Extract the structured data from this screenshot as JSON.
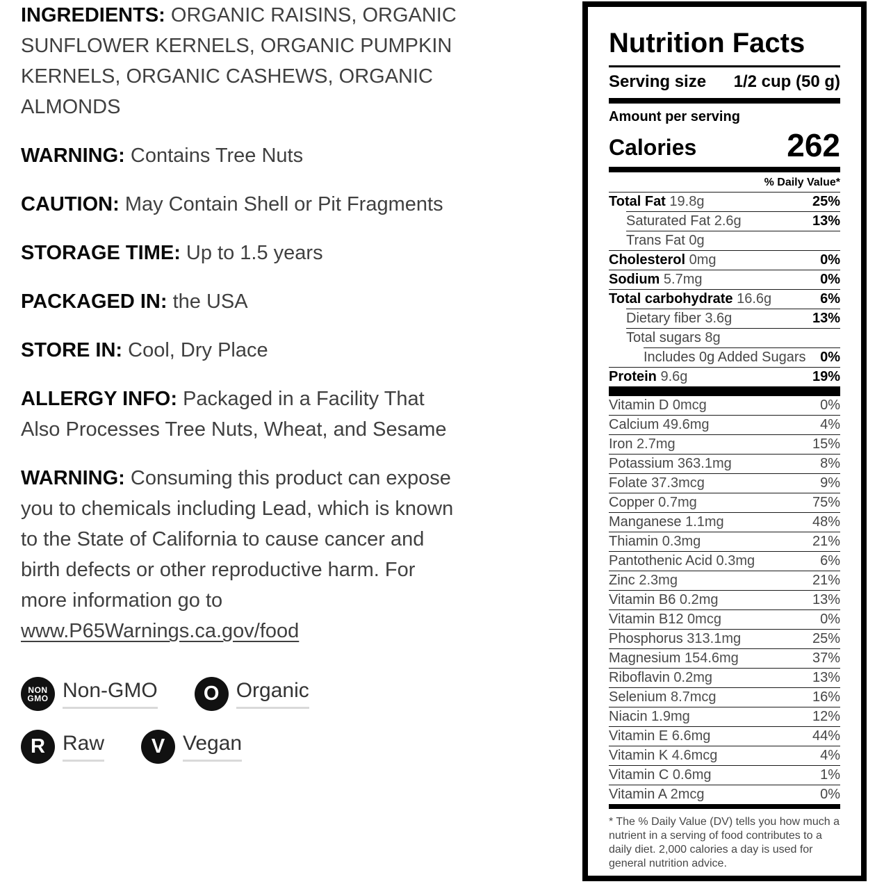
{
  "colors": {
    "background": "#ffffff",
    "text_primary": "#000000",
    "text_secondary": "#404040",
    "panel_border": "#000000",
    "badge_fill": "#111111",
    "label_underline": "#d9d9d9"
  },
  "left_panel": {
    "paragraphs": [
      {
        "name": "ingredients",
        "label": "INGREDIENTS:",
        "text": "ORGANIC RAISINS, ORGANIC SUNFLOWER KERNELS, ORGANIC PUMPKIN KERNELS, ORGANIC CASHEWS, ORGANIC ALMONDS"
      },
      {
        "name": "warning-tree-nuts",
        "label": "WARNING:",
        "text": "Contains Tree Nuts"
      },
      {
        "name": "caution",
        "label": "CAUTION:",
        "text": "May Contain Shell or Pit Fragments"
      },
      {
        "name": "storage-time",
        "label": "STORAGE TIME:",
        "text": "Up to 1.5 years"
      },
      {
        "name": "packaged-in",
        "label": "PACKAGED IN:",
        "text": "the USA"
      },
      {
        "name": "store-in",
        "label": "STORE IN:",
        "text": "Cool, Dry Place"
      },
      {
        "name": "allergy-info",
        "label": "ALLERGY INFO:",
        "text": "Packaged in a Facility That Also Processes Tree Nuts, Wheat, and Sesame"
      },
      {
        "name": "prop65-warning",
        "label": "WARNING:",
        "text": "Consuming this product can expose you to chemicals including Lead, which is known to the State of California to cause cancer and birth defects or other reproductive harm. For more information go to ",
        "link": "www.P65Warnings.ca.gov/food"
      }
    ],
    "badges": [
      {
        "icon_lines": [
          "NON",
          "GMO"
        ],
        "label": "Non-GMO"
      },
      {
        "icon_lines": [
          "O"
        ],
        "label": "Organic"
      },
      {
        "icon_lines": [
          "R"
        ],
        "label": "Raw"
      },
      {
        "icon_lines": [
          "V"
        ],
        "label": "Vegan"
      }
    ]
  },
  "nutrition_facts": {
    "title": "Nutrition Facts",
    "serving_size_label": "Serving size",
    "serving_size_value": "1/2 cup (50 g)",
    "amount_per_serving": "Amount per serving",
    "calories_label": "Calories",
    "calories_value": "262",
    "daily_value_header": "% Daily Value*",
    "nutrients": [
      {
        "name": "Total Fat",
        "amount": "19.8g",
        "dv": "25%",
        "bold": true,
        "indent": 0
      },
      {
        "name": "Saturated Fat",
        "amount": "2.6g",
        "dv": "13%",
        "bold": false,
        "indent": 1
      },
      {
        "name": "Trans Fat",
        "amount": "0g",
        "dv": "",
        "bold": false,
        "indent": 1
      },
      {
        "name": "Cholesterol",
        "amount": "0mg",
        "dv": "0%",
        "bold": true,
        "indent": 0
      },
      {
        "name": "Sodium",
        "amount": "5.7mg",
        "dv": "0%",
        "bold": true,
        "indent": 0
      },
      {
        "name": "Total carbohydrate",
        "amount": "16.6g",
        "dv": "6%",
        "bold": true,
        "indent": 0
      },
      {
        "name": "Dietary fiber",
        "amount": "3.6g",
        "dv": "13%",
        "bold": false,
        "indent": 1
      },
      {
        "name": "Total sugars",
        "amount": "8g",
        "dv": "",
        "bold": false,
        "indent": 1
      },
      {
        "name": "Includes 0g Added Sugars",
        "amount": "",
        "dv": "0%",
        "bold": false,
        "indent": 2
      },
      {
        "name": "Protein",
        "amount": "9.6g",
        "dv": "19%",
        "bold": true,
        "indent": 0
      }
    ],
    "vitamins": [
      {
        "name": "Vitamin D",
        "amount": "0mcg",
        "dv": "0%"
      },
      {
        "name": "Calcium",
        "amount": "49.6mg",
        "dv": "4%"
      },
      {
        "name": "Iron",
        "amount": "2.7mg",
        "dv": "15%"
      },
      {
        "name": "Potassium",
        "amount": "363.1mg",
        "dv": "8%"
      },
      {
        "name": "Folate",
        "amount": "37.3mcg",
        "dv": "9%"
      },
      {
        "name": "Copper",
        "amount": "0.7mg",
        "dv": "75%"
      },
      {
        "name": "Manganese",
        "amount": "1.1mg",
        "dv": "48%"
      },
      {
        "name": "Thiamin",
        "amount": "0.3mg",
        "dv": "21%"
      },
      {
        "name": "Pantothenic Acid",
        "amount": "0.3mg",
        "dv": "6%"
      },
      {
        "name": "Zinc",
        "amount": "2.3mg",
        "dv": "21%"
      },
      {
        "name": "Vitamin B6",
        "amount": "0.2mg",
        "dv": "13%"
      },
      {
        "name": "Vitamin B12",
        "amount": "0mcg",
        "dv": "0%"
      },
      {
        "name": "Phosphorus",
        "amount": "313.1mg",
        "dv": "25%"
      },
      {
        "name": "Magnesium",
        "amount": "154.6mg",
        "dv": "37%"
      },
      {
        "name": "Riboflavin",
        "amount": "0.2mg",
        "dv": "13%"
      },
      {
        "name": "Selenium",
        "amount": "8.7mcg",
        "dv": "16%"
      },
      {
        "name": "Niacin",
        "amount": "1.9mg",
        "dv": "12%"
      },
      {
        "name": "Vitamin E",
        "amount": "6.6mg",
        "dv": "44%"
      },
      {
        "name": "Vitamin K",
        "amount": "4.6mcg",
        "dv": "4%"
      },
      {
        "name": "Vitamin C",
        "amount": "0.6mg",
        "dv": "1%"
      },
      {
        "name": "Vitamin A",
        "amount": "2mcg",
        "dv": "0%"
      }
    ],
    "footnote": "* The % Daily Value (DV) tells you how much a nutrient in a serving of food contributes to a daily diet. 2,000 calories a day is used for general nutrition advice."
  }
}
